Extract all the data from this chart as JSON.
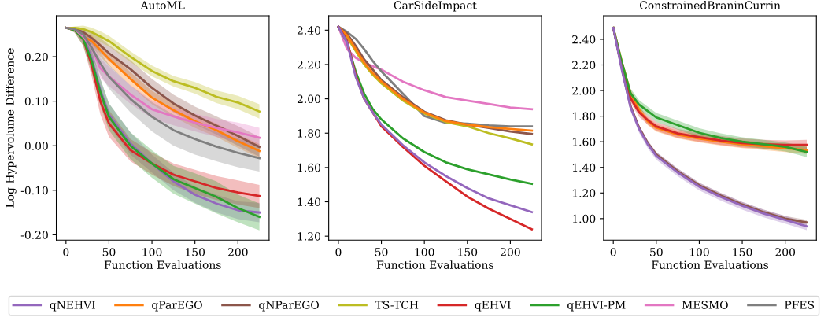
{
  "chart_data": [
    {
      "type": "line",
      "title": "AutoML",
      "xlabel": "Function Evaluations",
      "ylabel": "Log Hypervolume Difference",
      "legend": "bottom",
      "x": [
        0,
        10,
        20,
        30,
        40,
        50,
        75,
        100,
        125,
        150,
        175,
        200,
        225
      ],
      "xlim": [
        -11.25,
        236.25
      ],
      "xticks": [
        0,
        50,
        100,
        150,
        200
      ],
      "ylim": [
        -0.212,
        0.292
      ],
      "yticks": [
        {
          "value": -0.2,
          "label": "-0.20"
        },
        {
          "value": -0.1,
          "label": "-0.10"
        },
        {
          "value": 0.0,
          "label": "0.00"
        },
        {
          "value": 0.1,
          "label": "0.10"
        },
        {
          "value": 0.2,
          "label": "0.20"
        }
      ],
      "series": [
        {
          "name": "qNEHVI",
          "color": "#9467bd",
          "values": [
            0.265,
            0.262,
            0.245,
            0.195,
            0.125,
            0.07,
            0.005,
            -0.04,
            -0.08,
            -0.11,
            -0.13,
            -0.145,
            -0.15
          ],
          "lower": [
            0.265,
            0.258,
            0.232,
            0.175,
            0.1,
            0.045,
            -0.02,
            -0.06,
            -0.1,
            -0.128,
            -0.15,
            -0.165,
            -0.172
          ],
          "upper": [
            0.265,
            0.266,
            0.258,
            0.215,
            0.15,
            0.095,
            0.03,
            -0.02,
            -0.06,
            -0.092,
            -0.11,
            -0.125,
            -0.128
          ]
        },
        {
          "name": "qParEGO",
          "color": "#ff7f0e",
          "values": [
            0.265,
            0.262,
            0.245,
            0.235,
            0.215,
            0.195,
            0.15,
            0.108,
            0.08,
            0.055,
            0.035,
            0.01,
            -0.012
          ],
          "lower": [
            0.265,
            0.258,
            0.235,
            0.222,
            0.2,
            0.18,
            0.135,
            0.093,
            0.065,
            0.04,
            0.02,
            -0.005,
            -0.028
          ],
          "upper": [
            0.265,
            0.266,
            0.255,
            0.248,
            0.23,
            0.21,
            0.165,
            0.123,
            0.095,
            0.07,
            0.05,
            0.025,
            0.004
          ]
        },
        {
          "name": "qNParEGO",
          "color": "#8c564b",
          "values": [
            0.265,
            0.263,
            0.255,
            0.242,
            0.225,
            0.208,
            0.172,
            0.13,
            0.095,
            0.068,
            0.045,
            0.022,
            -0.003
          ],
          "lower": [
            0.265,
            0.26,
            0.245,
            0.228,
            0.208,
            0.19,
            0.152,
            0.11,
            0.075,
            0.048,
            0.025,
            0.0,
            -0.025
          ],
          "upper": [
            0.265,
            0.266,
            0.265,
            0.256,
            0.242,
            0.226,
            0.192,
            0.15,
            0.115,
            0.088,
            0.066,
            0.044,
            0.02
          ]
        },
        {
          "name": "TS-TCH",
          "color": "#bcbd22",
          "values": [
            0.265,
            0.265,
            0.262,
            0.255,
            0.245,
            0.235,
            0.2,
            0.168,
            0.145,
            0.13,
            0.11,
            0.097,
            0.077
          ],
          "lower": [
            0.265,
            0.262,
            0.254,
            0.245,
            0.233,
            0.223,
            0.188,
            0.156,
            0.133,
            0.117,
            0.096,
            0.082,
            0.061
          ],
          "upper": [
            0.265,
            0.268,
            0.27,
            0.265,
            0.257,
            0.247,
            0.212,
            0.18,
            0.157,
            0.143,
            0.124,
            0.112,
            0.093
          ]
        },
        {
          "name": "qEHVI",
          "color": "#d62728",
          "values": [
            0.265,
            0.26,
            0.24,
            0.18,
            0.1,
            0.05,
            -0.01,
            -0.04,
            -0.065,
            -0.08,
            -0.095,
            -0.105,
            -0.113
          ],
          "lower": [
            0.265,
            0.254,
            0.225,
            0.155,
            0.07,
            0.02,
            -0.035,
            -0.065,
            -0.09,
            -0.108,
            -0.122,
            -0.132,
            -0.14
          ],
          "upper": [
            0.265,
            0.266,
            0.255,
            0.205,
            0.13,
            0.08,
            0.015,
            -0.015,
            -0.04,
            -0.054,
            -0.068,
            -0.078,
            -0.088
          ]
        },
        {
          "name": "qEHVI-PM",
          "color": "#2ca02c",
          "values": [
            0.265,
            0.26,
            0.24,
            0.19,
            0.12,
            0.065,
            0.0,
            -0.04,
            -0.075,
            -0.095,
            -0.115,
            -0.14,
            -0.16
          ],
          "lower": [
            0.265,
            0.254,
            0.225,
            0.165,
            0.09,
            0.035,
            -0.03,
            -0.072,
            -0.108,
            -0.13,
            -0.152,
            -0.172,
            -0.19
          ],
          "upper": [
            0.265,
            0.266,
            0.255,
            0.215,
            0.15,
            0.095,
            0.03,
            -0.01,
            -0.045,
            -0.062,
            -0.08,
            -0.11,
            -0.13
          ]
        },
        {
          "name": "MESMO",
          "color": "#e377c2",
          "values": [
            0.265,
            0.262,
            0.245,
            0.22,
            0.174,
            0.156,
            0.115,
            0.082,
            0.066,
            0.052,
            0.04,
            0.03,
            0.018
          ],
          "lower": [
            0.265,
            0.258,
            0.232,
            0.2,
            0.152,
            0.134,
            0.094,
            0.062,
            0.046,
            0.032,
            0.02,
            0.008,
            -0.004
          ],
          "upper": [
            0.265,
            0.266,
            0.258,
            0.24,
            0.196,
            0.178,
            0.136,
            0.102,
            0.086,
            0.072,
            0.06,
            0.052,
            0.04
          ]
        },
        {
          "name": "PFES",
          "color": "#7f7f7f",
          "values": [
            0.265,
            0.262,
            0.25,
            0.22,
            0.185,
            0.155,
            0.105,
            0.065,
            0.035,
            0.015,
            -0.002,
            -0.016,
            -0.028
          ],
          "lower": [
            0.265,
            0.258,
            0.238,
            0.2,
            0.16,
            0.128,
            0.075,
            0.032,
            0.0,
            -0.02,
            -0.035,
            -0.048,
            -0.058
          ],
          "upper": [
            0.265,
            0.266,
            0.262,
            0.24,
            0.21,
            0.182,
            0.135,
            0.098,
            0.07,
            0.05,
            0.031,
            0.016,
            0.002
          ]
        }
      ]
    },
    {
      "type": "line",
      "title": "CarSideImpact",
      "xlabel": "Function Evaluations",
      "x": [
        0,
        10,
        20,
        30,
        40,
        50,
        75,
        100,
        125,
        150,
        175,
        200,
        225
      ],
      "xlim": [
        -11.25,
        236.25
      ],
      "xticks": [
        0,
        50,
        100,
        150,
        200
      ],
      "ylim": [
        1.177,
        2.484
      ],
      "yticks": [
        {
          "value": 1.2,
          "label": "1.20"
        },
        {
          "value": 1.4,
          "label": "1.40"
        },
        {
          "value": 1.6,
          "label": "1.60"
        },
        {
          "value": 1.8,
          "label": "1.80"
        },
        {
          "value": 2.0,
          "label": "2.00"
        },
        {
          "value": 2.2,
          "label": "2.20"
        },
        {
          "value": 2.4,
          "label": "2.40"
        }
      ],
      "series": [
        {
          "color": "#e377c2",
          "values": [
            2.42,
            2.29,
            2.24,
            2.21,
            2.19,
            2.17,
            2.1,
            2.05,
            2.01,
            1.99,
            1.97,
            1.95,
            1.94
          ]
        },
        {
          "color": "#7f7f7f",
          "values": [
            2.42,
            2.39,
            2.35,
            2.29,
            2.22,
            2.16,
            2.03,
            1.9,
            1.86,
            1.855,
            1.845,
            1.84,
            1.84
          ]
        },
        {
          "color": "#bcbd22",
          "values": [
            2.42,
            2.36,
            2.28,
            2.2,
            2.14,
            2.09,
            1.99,
            1.915,
            1.865,
            1.84,
            1.8,
            1.77,
            1.735
          ]
        },
        {
          "color": "#8c564b",
          "values": [
            2.42,
            2.38,
            2.31,
            2.23,
            2.17,
            2.11,
            2.01,
            1.925,
            1.875,
            1.85,
            1.83,
            1.81,
            1.795
          ]
        },
        {
          "color": "#ff7f0e",
          "values": [
            2.42,
            2.37,
            2.29,
            2.21,
            2.15,
            2.1,
            2.0,
            1.92,
            1.87,
            1.85,
            1.835,
            1.825,
            1.815
          ]
        },
        {
          "color": "#2ca02c",
          "values": [
            2.42,
            2.33,
            2.16,
            2.03,
            1.94,
            1.88,
            1.77,
            1.69,
            1.63,
            1.59,
            1.56,
            1.53,
            1.505
          ]
        },
        {
          "color": "#d62728",
          "values": [
            2.42,
            2.34,
            2.14,
            2.0,
            1.92,
            1.84,
            1.72,
            1.61,
            1.52,
            1.43,
            1.36,
            1.3,
            1.24
          ]
        },
        {
          "color": "#9467bd",
          "values": [
            2.42,
            2.33,
            2.13,
            2.0,
            1.92,
            1.85,
            1.73,
            1.63,
            1.55,
            1.48,
            1.42,
            1.38,
            1.34
          ]
        }
      ]
    },
    {
      "type": "line",
      "title": "ConstrainedBraninCurrin",
      "xlabel": "Function Evaluations",
      "x": [
        0,
        10,
        20,
        30,
        40,
        50,
        75,
        100,
        125,
        150,
        175,
        200,
        225
      ],
      "xlim": [
        -11.25,
        236.25
      ],
      "xticks": [
        0,
        50,
        100,
        150,
        200
      ],
      "ylim": [
        0.832,
        2.584
      ],
      "yticks": [
        {
          "value": 1.0,
          "label": "1.00"
        },
        {
          "value": 1.2,
          "label": "1.20"
        },
        {
          "value": 1.4,
          "label": "1.40"
        },
        {
          "value": 1.6,
          "label": "1.60"
        },
        {
          "value": 1.8,
          "label": "1.80"
        },
        {
          "value": 2.0,
          "label": "2.00"
        },
        {
          "value": 2.2,
          "label": "2.20"
        },
        {
          "value": 2.4,
          "label": "2.40"
        }
      ],
      "series": [
        {
          "color": "#ff7f0e",
          "values": [
            2.49,
            2.22,
            1.98,
            1.85,
            1.76,
            1.71,
            1.655,
            1.625,
            1.6,
            1.58,
            1.565,
            1.55,
            1.535
          ],
          "lower": [
            2.49,
            2.19,
            1.95,
            1.82,
            1.73,
            1.68,
            1.625,
            1.595,
            1.57,
            1.55,
            1.535,
            1.52,
            1.505
          ],
          "upper": [
            2.49,
            2.25,
            2.01,
            1.88,
            1.79,
            1.74,
            1.685,
            1.655,
            1.63,
            1.61,
            1.595,
            1.58,
            1.565
          ]
        },
        {
          "color": "#d62728",
          "values": [
            2.49,
            2.18,
            1.94,
            1.83,
            1.77,
            1.72,
            1.665,
            1.635,
            1.61,
            1.59,
            1.58,
            1.575,
            1.575
          ],
          "lower": [
            2.49,
            2.15,
            1.905,
            1.795,
            1.735,
            1.685,
            1.63,
            1.6,
            1.575,
            1.555,
            1.545,
            1.54,
            1.535
          ],
          "upper": [
            2.49,
            2.21,
            1.975,
            1.865,
            1.805,
            1.755,
            1.7,
            1.67,
            1.645,
            1.625,
            1.615,
            1.61,
            1.615
          ]
        },
        {
          "color": "#2ca02c",
          "values": [
            2.49,
            2.22,
            1.98,
            1.89,
            1.84,
            1.79,
            1.73,
            1.67,
            1.63,
            1.6,
            1.58,
            1.56,
            1.52
          ],
          "lower": [
            2.49,
            2.19,
            1.945,
            1.855,
            1.805,
            1.755,
            1.695,
            1.635,
            1.595,
            1.565,
            1.545,
            1.525,
            1.48
          ],
          "upper": [
            2.49,
            2.25,
            2.015,
            1.925,
            1.875,
            1.825,
            1.765,
            1.705,
            1.665,
            1.635,
            1.615,
            1.595,
            1.56
          ]
        },
        {
          "color": "#8c564b",
          "values": [
            2.49,
            2.17,
            1.88,
            1.71,
            1.59,
            1.5,
            1.37,
            1.26,
            1.18,
            1.11,
            1.05,
            1.0,
            0.97
          ],
          "lower": [
            2.49,
            2.15,
            1.86,
            1.69,
            1.57,
            1.48,
            1.35,
            1.24,
            1.16,
            1.09,
            1.03,
            0.98,
            0.95
          ],
          "upper": [
            2.49,
            2.19,
            1.9,
            1.73,
            1.61,
            1.52,
            1.39,
            1.28,
            1.2,
            1.13,
            1.07,
            1.02,
            0.99
          ]
        },
        {
          "color": "#9467bd",
          "values": [
            2.49,
            2.16,
            1.87,
            1.7,
            1.58,
            1.49,
            1.36,
            1.25,
            1.17,
            1.1,
            1.04,
            0.99,
            0.94
          ],
          "lower": [
            2.49,
            2.13,
            1.84,
            1.67,
            1.55,
            1.46,
            1.33,
            1.22,
            1.14,
            1.07,
            1.01,
            0.96,
            0.91
          ],
          "upper": [
            2.49,
            2.19,
            1.9,
            1.73,
            1.61,
            1.52,
            1.39,
            1.28,
            1.2,
            1.13,
            1.07,
            1.02,
            0.97
          ]
        }
      ]
    }
  ]
}
